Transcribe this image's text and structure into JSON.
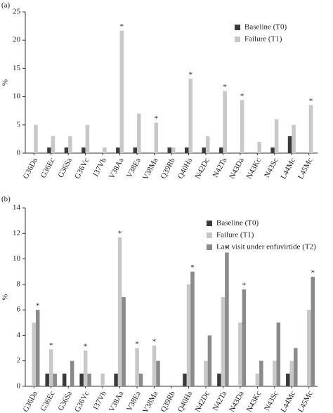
{
  "chart_data": [
    {
      "type": "bar",
      "panel_label": "(a)",
      "y_label": "%",
      "categories": [
        "G36Da",
        "G36Ec",
        "G36Sa",
        "G36Vc",
        "I37Vb",
        "V38Aa",
        "V38Ea",
        "V38Ma",
        "Q39Rb",
        "Q40Ha",
        "N42Dc",
        "N42Ta",
        "N43Da",
        "N43Kc",
        "N43Sc",
        "L44Mc",
        "L45Mc"
      ],
      "series": [
        {
          "name": "Baseline (T0)",
          "color": "#3a3a3a",
          "values": [
            0,
            1,
            1,
            1,
            0,
            1,
            1,
            0,
            1,
            1,
            1,
            1,
            0,
            0,
            1,
            3,
            0
          ]
        },
        {
          "name": "Failure (T1)",
          "color": "#c8c8c8",
          "values": [
            5,
            3,
            3,
            5,
            1,
            21.7,
            7,
            5.4,
            1,
            13.2,
            3,
            11,
            9.4,
            2,
            6,
            5,
            8.5
          ]
        }
      ],
      "ylim": [
        0,
        25
      ],
      "yticks": [
        0,
        5,
        10,
        15,
        20,
        25
      ],
      "grid": false,
      "legend": "upper right",
      "annotations": [
        {
          "category": "V38Aa",
          "text": "*"
        },
        {
          "category": "V38Ma",
          "text": "*"
        },
        {
          "category": "Q40Ha",
          "text": "*"
        },
        {
          "category": "N42Ta",
          "text": "*"
        },
        {
          "category": "N43Da",
          "text": "*"
        },
        {
          "category": "L45Mc",
          "text": "*"
        }
      ]
    },
    {
      "type": "bar",
      "panel_label": "(b)",
      "y_label": "%",
      "categories": [
        "G36Da",
        "G36Ec",
        "G36Sa",
        "G36Vc",
        "I37Vb",
        "V38Aa",
        "V38Ea",
        "V38Ma",
        "Q39Rb",
        "Q40Ha",
        "N42Dc",
        "N42Ta",
        "N43Da",
        "N43Kc",
        "N43Sc",
        "L44Mc",
        "L45Mc"
      ],
      "series": [
        {
          "name": "Baseline (T0)",
          "color": "#3a3a3a",
          "values": [
            0,
            1,
            1,
            1,
            0,
            1,
            0,
            0,
            0,
            1,
            0,
            1,
            0,
            0,
            0,
            1,
            0
          ]
        },
        {
          "name": "Failure (T1)",
          "color": "#c8c8c8",
          "values": [
            5,
            2.9,
            0,
            2.8,
            1,
            11.7,
            3,
            3.2,
            0,
            8,
            2,
            7,
            5,
            1,
            2,
            2,
            6
          ]
        },
        {
          "name": "Last visit under enfuvirtide (T2)",
          "color": "#8a8a8a",
          "values": [
            6,
            1,
            2,
            1,
            0,
            7,
            1,
            2,
            0,
            9,
            4,
            10.5,
            7.6,
            2,
            5,
            3,
            8.6
          ]
        }
      ],
      "ylim": [
        0,
        14
      ],
      "yticks": [
        0,
        2,
        4,
        6,
        8,
        10,
        12,
        14
      ],
      "grid": false,
      "legend": "upper right",
      "annotations": [
        {
          "category": "G36Da",
          "text": "*"
        },
        {
          "category": "G36Ec",
          "text": "*"
        },
        {
          "category": "G36Vc",
          "text": "*"
        },
        {
          "category": "V38Aa",
          "text": "*"
        },
        {
          "category": "V38Ea",
          "text": "*"
        },
        {
          "category": "V38Ma",
          "text": "*"
        },
        {
          "category": "Q40Ha",
          "text": "*"
        },
        {
          "category": "N42Ta",
          "text": "*"
        },
        {
          "category": "N43Da",
          "text": "*"
        },
        {
          "category": "L45Mc",
          "text": "*"
        }
      ]
    }
  ]
}
